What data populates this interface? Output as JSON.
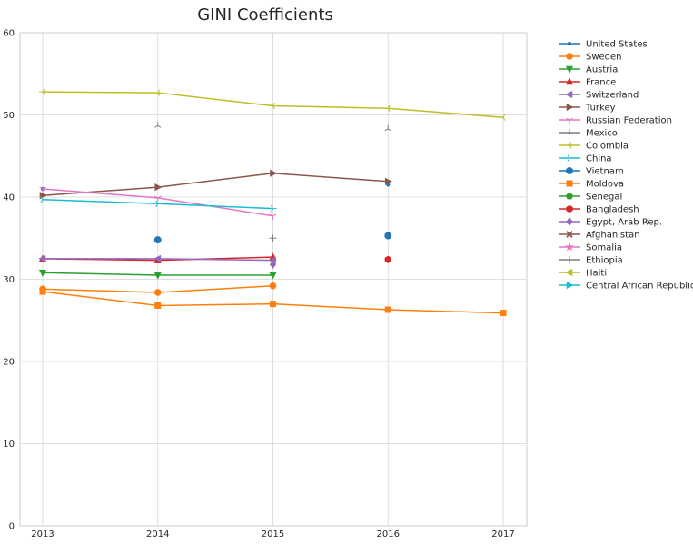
{
  "chart_data": {
    "type": "line",
    "title": "GINI Coefficients",
    "xlabel": "",
    "ylabel": "",
    "x": [
      2013,
      2014,
      2015,
      2016,
      2017
    ],
    "ylim": [
      0,
      60
    ],
    "yticks": [
      0,
      10,
      20,
      30,
      40,
      50,
      60
    ],
    "grid": true,
    "legend_position": "outside-right",
    "series": [
      {
        "name": "United States",
        "color": "#1f77b4",
        "marker": "point",
        "values": [
          41.0,
          null,
          null,
          41.5,
          null
        ]
      },
      {
        "name": "Sweden",
        "color": "#ff7f0e",
        "marker": "circle",
        "values": [
          28.8,
          28.4,
          29.2,
          null,
          null
        ]
      },
      {
        "name": "Austria",
        "color": "#2ca02c",
        "marker": "triangle-down",
        "values": [
          30.8,
          30.5,
          30.5,
          null,
          null
        ]
      },
      {
        "name": "France",
        "color": "#d62728",
        "marker": "triangle-up",
        "values": [
          32.5,
          32.3,
          32.7,
          null,
          null
        ]
      },
      {
        "name": "Switzerland",
        "color": "#9467bd",
        "marker": "triangle-left",
        "values": [
          32.5,
          32.5,
          32.3,
          null,
          null
        ]
      },
      {
        "name": "Turkey",
        "color": "#8c564b",
        "marker": "triangle-right",
        "values": [
          40.2,
          41.2,
          42.9,
          41.9,
          null
        ]
      },
      {
        "name": "Russian Federation",
        "color": "#e377c2",
        "marker": "tri-down",
        "values": [
          41.0,
          39.9,
          37.7,
          null,
          null
        ]
      },
      {
        "name": "Mexico",
        "color": "#7f7f7f",
        "marker": "tri-up",
        "values": [
          null,
          48.7,
          null,
          48.3,
          null
        ]
      },
      {
        "name": "Colombia",
        "color": "#bcbd22",
        "marker": "tri-left",
        "values": [
          52.8,
          52.7,
          51.1,
          50.8,
          49.7
        ]
      },
      {
        "name": "China",
        "color": "#17becf",
        "marker": "tri-right",
        "values": [
          39.7,
          39.2,
          38.6,
          null,
          null
        ]
      },
      {
        "name": "Vietnam",
        "color": "#1f77b4",
        "marker": "octagon",
        "values": [
          null,
          34.8,
          null,
          35.3,
          null
        ]
      },
      {
        "name": "Moldova",
        "color": "#ff7f0e",
        "marker": "square",
        "values": [
          28.5,
          26.8,
          27.0,
          26.3,
          25.9
        ]
      },
      {
        "name": "Senegal",
        "color": "#2ca02c",
        "marker": "pentagon",
        "values": [
          null,
          null,
          null,
          null,
          null
        ]
      },
      {
        "name": "Bangladesh",
        "color": "#d62728",
        "marker": "hexagon",
        "values": [
          null,
          null,
          null,
          32.4,
          null
        ]
      },
      {
        "name": "Egypt, Arab Rep.",
        "color": "#9467bd",
        "marker": "diamond",
        "values": [
          null,
          null,
          31.8,
          null,
          null
        ]
      },
      {
        "name": "Afghanistan",
        "color": "#8c564b",
        "marker": "x",
        "values": [
          null,
          null,
          null,
          null,
          null
        ]
      },
      {
        "name": "Somalia",
        "color": "#e377c2",
        "marker": "star",
        "values": [
          null,
          null,
          null,
          null,
          null
        ]
      },
      {
        "name": "Ethiopia",
        "color": "#7f7f7f",
        "marker": "plus",
        "values": [
          null,
          null,
          35.0,
          null,
          null
        ]
      },
      {
        "name": "Haiti",
        "color": "#bcbd22",
        "marker": "triangle-left",
        "values": [
          null,
          null,
          null,
          null,
          null
        ]
      },
      {
        "name": "Central African Republic",
        "color": "#17becf",
        "marker": "triangle-right",
        "values": [
          null,
          null,
          null,
          null,
          null
        ]
      }
    ]
  }
}
